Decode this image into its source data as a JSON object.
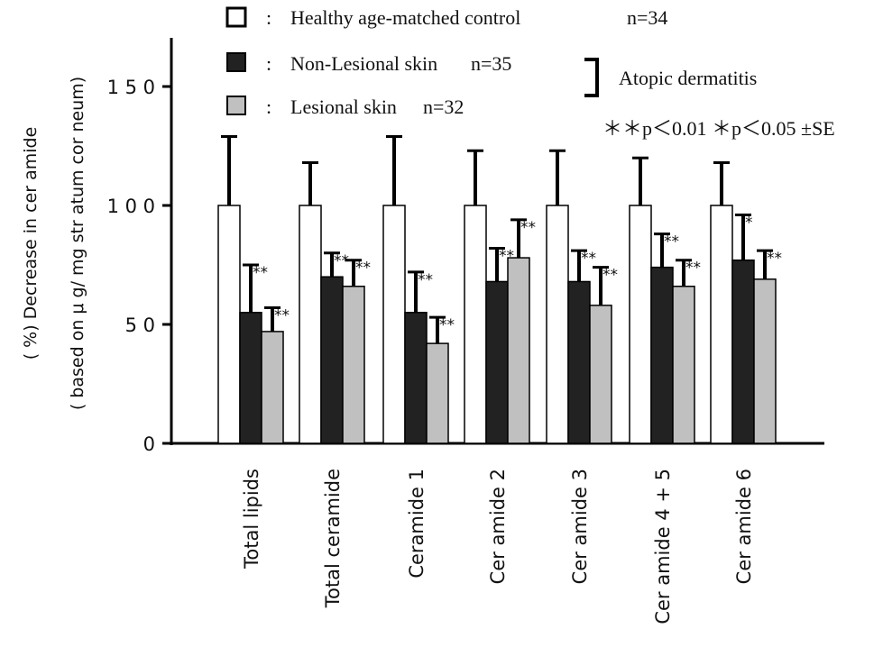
{
  "chart_data": {
    "type": "bar",
    "ylabel_line1": "( %)  Decrease in cer amide",
    "ylabel_line2": "( based on μ g/ mg str atum cor neum)",
    "ylim": [
      0,
      150
    ],
    "yticks": [
      {
        "value": 0,
        "label": "0"
      },
      {
        "value": 50,
        "label": "5 0"
      },
      {
        "value": 100,
        "label": "1 0 0"
      },
      {
        "value": 150,
        "label": "1 5 0"
      }
    ],
    "categories": [
      "Total lipids",
      "Total ceramide",
      "Ceramide 1",
      "Cer amide 2",
      "Cer amide 3",
      "Cer amide 4 + 5",
      "Cer amide 6"
    ],
    "series": [
      {
        "name": "Healthy age-matched control",
        "n_label": "n=34",
        "color": "#ffffff",
        "values": [
          100,
          100,
          100,
          100,
          100,
          100,
          100
        ],
        "se": [
          29,
          18,
          29,
          23,
          23,
          20,
          18
        ],
        "sig": [
          "",
          "",
          "",
          "",
          "",
          "",
          ""
        ]
      },
      {
        "name": "Non-Lesional skin",
        "n_label": "n=35",
        "color": "#222222",
        "values": [
          55,
          70,
          55,
          68,
          68,
          74,
          77
        ],
        "se": [
          20,
          10,
          17,
          14,
          13,
          14,
          19
        ],
        "sig": [
          "**",
          "**",
          "**",
          "**",
          "**",
          "**",
          "*"
        ]
      },
      {
        "name": "Lesional skin",
        "n_label": "n=32",
        "color": "#c0c0c0",
        "values": [
          47,
          66,
          42,
          78,
          58,
          66,
          69
        ],
        "se": [
          10,
          11,
          11,
          16,
          16,
          11,
          12
        ],
        "sig": [
          "**",
          "**",
          "**",
          "**",
          "**",
          "**",
          "**"
        ]
      }
    ],
    "legend": {
      "sep": ":",
      "bracket_label": "Atopic dermatitis",
      "note": "＊＊p＜0.01   ＊p＜0.05   ±SE"
    }
  }
}
